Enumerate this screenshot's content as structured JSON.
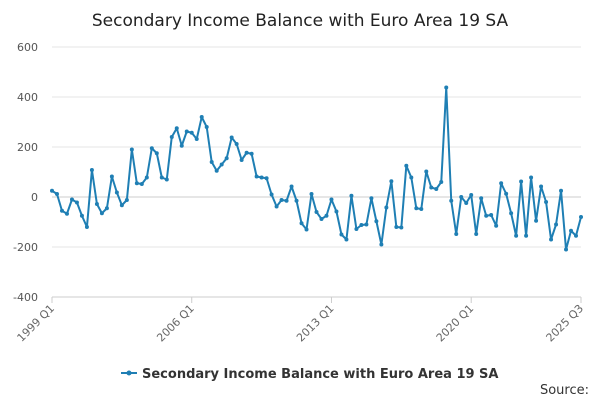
{
  "chart_data": {
    "type": "line",
    "title": "Secondary Income Balance with Euro Area 19 SA",
    "xlabel": "",
    "ylabel": "",
    "ylim": [
      -400,
      600
    ],
    "y_ticks": [
      -400,
      -200,
      0,
      200,
      400,
      600
    ],
    "x_tick_labels": [
      "1999 Q1",
      "2006 Q1",
      "2013 Q1",
      "2020 Q1",
      "2025 Q3"
    ],
    "x_start": "1999 Q1",
    "x_end": "2025 Q3",
    "grid": true,
    "legend": "bottom",
    "source_label": "Source:",
    "series": [
      {
        "name": "Secondary Income Balance with Euro Area 19 SA",
        "color": "#1f7fb4",
        "values": [
          25,
          12,
          -55,
          -67,
          -10,
          -22,
          -75,
          -120,
          108,
          -28,
          -65,
          -45,
          82,
          18,
          -33,
          -12,
          190,
          55,
          52,
          78,
          195,
          175,
          78,
          70,
          240,
          275,
          205,
          262,
          257,
          232,
          320,
          280,
          140,
          105,
          130,
          155,
          238,
          212,
          148,
          177,
          173,
          82,
          78,
          75,
          10,
          -38,
          -12,
          -15,
          42,
          -15,
          -105,
          -130,
          12,
          -60,
          -88,
          -75,
          -10,
          -58,
          -150,
          -170,
          5,
          -128,
          -112,
          -110,
          -5,
          -97,
          -190,
          -42,
          63,
          -120,
          -122,
          125,
          78,
          -45,
          -48,
          102,
          38,
          32,
          60,
          438,
          -15,
          -148,
          0,
          -24,
          8,
          -148,
          -5,
          -75,
          -72,
          -115,
          55,
          13,
          -65,
          -155,
          62,
          -155,
          78,
          -95,
          42,
          -20,
          -170,
          -110,
          25,
          -210,
          -135,
          -155,
          -80
        ]
      }
    ]
  }
}
